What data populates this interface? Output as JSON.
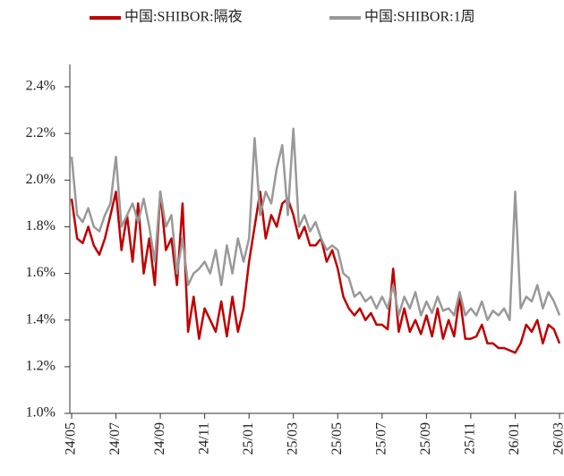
{
  "chart_data": {
    "type": "line",
    "categories": [
      "24/05",
      null,
      null,
      null,
      null,
      null,
      null,
      null,
      "24/07",
      null,
      null,
      null,
      null,
      null,
      null,
      null,
      "24/09",
      null,
      null,
      null,
      null,
      null,
      null,
      null,
      "24/11",
      null,
      null,
      null,
      null,
      null,
      null,
      null,
      "25/01",
      null,
      null,
      null,
      null,
      null,
      null,
      null,
      "25/03",
      null,
      null,
      null,
      null,
      null,
      null,
      null,
      "25/05",
      null,
      null,
      null,
      null,
      null,
      null,
      null,
      "25/07",
      null,
      null,
      null,
      null,
      null,
      null,
      null,
      "25/09",
      null,
      null,
      null,
      null,
      null,
      null,
      null,
      "25/11",
      null,
      null,
      null,
      null,
      null,
      null,
      null,
      "26/01",
      null,
      null,
      null,
      null,
      null,
      null,
      null,
      "26/03"
    ],
    "series": [
      {
        "name": "中国:SHIBOR:隔夜",
        "color": "#c00000",
        "values": [
          1.92,
          1.75,
          1.73,
          1.8,
          1.72,
          1.68,
          1.75,
          1.85,
          1.95,
          1.7,
          1.85,
          1.65,
          1.9,
          1.6,
          1.75,
          1.55,
          1.95,
          1.7,
          1.75,
          1.55,
          1.9,
          1.35,
          1.5,
          1.32,
          1.45,
          1.4,
          1.35,
          1.48,
          1.33,
          1.5,
          1.35,
          1.45,
          1.65,
          1.8,
          1.95,
          1.75,
          1.85,
          1.8,
          1.9,
          1.92,
          1.85,
          1.75,
          1.8,
          1.72,
          1.72,
          1.75,
          1.65,
          1.7,
          1.62,
          1.5,
          1.45,
          1.42,
          1.45,
          1.4,
          1.43,
          1.38,
          1.38,
          1.36,
          1.62,
          1.35,
          1.45,
          1.35,
          1.4,
          1.34,
          1.42,
          1.33,
          1.45,
          1.32,
          1.4,
          1.33,
          1.5,
          1.32,
          1.32,
          1.33,
          1.38,
          1.3,
          1.3,
          1.28,
          1.28,
          1.27,
          1.26,
          1.3,
          1.38,
          1.35,
          1.4,
          1.3,
          1.38,
          1.36,
          1.3
        ]
      },
      {
        "name": "中国:SHIBOR:1周",
        "color": "#999999",
        "values": [
          2.1,
          1.85,
          1.82,
          1.88,
          1.8,
          1.78,
          1.85,
          1.9,
          2.1,
          1.8,
          1.85,
          1.9,
          1.82,
          1.92,
          1.8,
          1.65,
          1.95,
          1.8,
          1.85,
          1.6,
          1.75,
          1.55,
          1.6,
          1.62,
          1.65,
          1.6,
          1.7,
          1.55,
          1.72,
          1.6,
          1.75,
          1.65,
          1.75,
          2.18,
          1.85,
          1.95,
          1.9,
          2.05,
          2.15,
          1.85,
          2.22,
          1.8,
          1.85,
          1.78,
          1.82,
          1.75,
          1.7,
          1.72,
          1.7,
          1.6,
          1.58,
          1.5,
          1.52,
          1.48,
          1.5,
          1.45,
          1.5,
          1.45,
          1.55,
          1.42,
          1.5,
          1.45,
          1.52,
          1.42,
          1.48,
          1.43,
          1.5,
          1.44,
          1.45,
          1.42,
          1.52,
          1.42,
          1.45,
          1.42,
          1.48,
          1.4,
          1.44,
          1.42,
          1.45,
          1.4,
          1.95,
          1.45,
          1.5,
          1.48,
          1.55,
          1.45,
          1.52,
          1.48,
          1.42
        ]
      }
    ],
    "ylim": [
      1.0,
      2.4
    ],
    "yticks": [
      {
        "value": 1.0,
        "label": "1.0%"
      },
      {
        "value": 1.2,
        "label": "1.2%"
      },
      {
        "value": 1.4,
        "label": "1.4%"
      },
      {
        "value": 1.6,
        "label": "1.6%"
      },
      {
        "value": 1.8,
        "label": "1.8%"
      },
      {
        "value": 2.0,
        "label": "2.0%"
      },
      {
        "value": 2.2,
        "label": "2.2%"
      },
      {
        "value": 2.4,
        "label": "2.4%"
      }
    ]
  }
}
